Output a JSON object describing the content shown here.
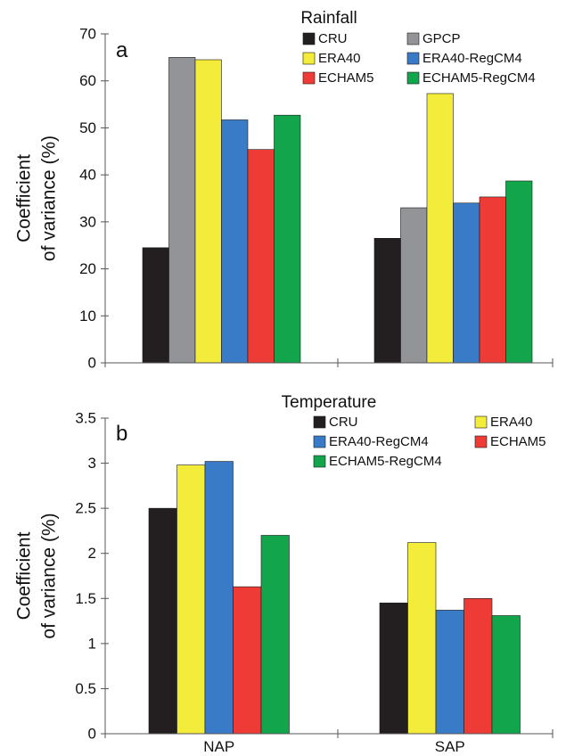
{
  "colors": {
    "CRU": "#231f20",
    "GPCP": "#929497",
    "ERA40": "#f3ec3a",
    "ERA40-RegCM4": "#3a7bc8",
    "ECHAM5": "#ef3b36",
    "ECHAM5-RegCM4": "#13a54b"
  },
  "chart_data": [
    {
      "type": "bar",
      "title": "Rainfall",
      "panel_label": "a",
      "ylabel_line1": "Coefficient",
      "ylabel_line2": "of variance (%)",
      "ylim": [
        0,
        70
      ],
      "yticks": [
        "0",
        "10",
        "20",
        "30",
        "40",
        "50",
        "60",
        "70"
      ],
      "categories": [
        "NAP",
        "SAP"
      ],
      "show_category_labels": false,
      "legend_placement": "top-right",
      "series": [
        {
          "name": "CRU",
          "values": [
            24.5,
            26.5
          ]
        },
        {
          "name": "GPCP",
          "values": [
            65,
            33
          ]
        },
        {
          "name": "ERA40",
          "values": [
            64.5,
            57.3
          ]
        },
        {
          "name": "ERA40-RegCM4",
          "values": [
            51.7,
            34
          ]
        },
        {
          "name": "ECHAM5",
          "values": [
            45.4,
            35.3
          ]
        },
        {
          "name": "ECHAM5-RegCM4",
          "values": [
            52.7,
            38.7
          ]
        }
      ]
    },
    {
      "type": "bar",
      "title": "Temperature",
      "panel_label": "b",
      "ylabel_line1": "Coefficient",
      "ylabel_line2": "of variance (%)",
      "ylim": [
        0,
        3.5
      ],
      "yticks": [
        "0",
        "0.5",
        "1",
        "1.5",
        "2",
        "2.5",
        "3",
        "3.5"
      ],
      "categories": [
        "NAP",
        "SAP"
      ],
      "show_category_labels": true,
      "legend_placement": "top-right",
      "series": [
        {
          "name": "CRU",
          "values": [
            2.5,
            1.45
          ]
        },
        {
          "name": "ERA40",
          "values": [
            2.98,
            2.12
          ]
        },
        {
          "name": "ERA40-RegCM4",
          "values": [
            3.02,
            1.37
          ]
        },
        {
          "name": "ECHAM5",
          "values": [
            1.63,
            1.5
          ]
        },
        {
          "name": "ECHAM5-RegCM4",
          "values": [
            2.2,
            1.31
          ]
        }
      ]
    }
  ]
}
